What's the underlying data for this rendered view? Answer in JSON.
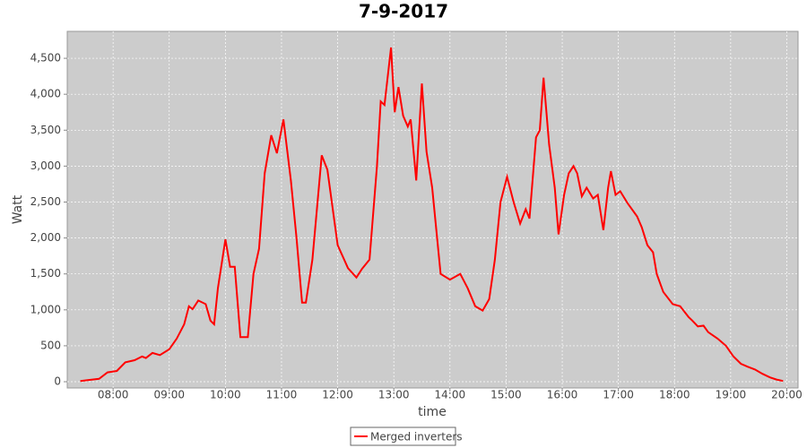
{
  "chart_data": {
    "type": "line",
    "title": "7-9-2017",
    "x_label": "time",
    "y_label": "Watt",
    "x": [
      "07:25",
      "07:35",
      "07:45",
      "07:54",
      "08:04",
      "08:13",
      "08:23",
      "08:31",
      "08:35",
      "08:42",
      "08:50",
      "09:00",
      "09:08",
      "09:16",
      "09:21",
      "09:25",
      "09:31",
      "09:39",
      "09:44",
      "09:48",
      "09:52",
      "10:00",
      "10:05",
      "10:10",
      "10:16",
      "10:24",
      "10:30",
      "10:36",
      "10:42",
      "10:49",
      "10:55",
      "11:02",
      "11:10",
      "11:16",
      "11:22",
      "11:26",
      "11:33",
      "11:43",
      "11:49",
      "12:00",
      "12:11",
      "12:20",
      "12:26",
      "12:34",
      "12:42",
      "12:46",
      "12:50",
      "12:57",
      "13:01",
      "13:05",
      "13:10",
      "13:15",
      "13:18",
      "13:24",
      "13:30",
      "13:35",
      "13:41",
      "13:50",
      "14:00",
      "14:11",
      "14:19",
      "14:27",
      "14:35",
      "14:42",
      "14:48",
      "14:54",
      "15:01",
      "15:08",
      "15:15",
      "15:21",
      "15:25",
      "15:32",
      "15:36",
      "15:40",
      "15:46",
      "15:52",
      "15:56",
      "16:02",
      "16:07",
      "16:12",
      "16:16",
      "16:21",
      "16:26",
      "16:33",
      "16:38",
      "16:44",
      "16:49",
      "16:52",
      "16:57",
      "17:02",
      "17:10",
      "17:20",
      "17:25",
      "17:31",
      "17:37",
      "17:41",
      "17:48",
      "17:58",
      "18:06",
      "18:15",
      "18:19",
      "18:25",
      "18:31",
      "18:36",
      "18:46",
      "18:55",
      "19:03",
      "19:11",
      "19:18",
      "19:26",
      "19:34",
      "19:42",
      "19:49",
      "19:56"
    ],
    "series": [
      {
        "name": "Merged inverters",
        "color": "#ff0000",
        "values": [
          10,
          25,
          40,
          130,
          150,
          270,
          300,
          350,
          330,
          400,
          370,
          450,
          600,
          800,
          1050,
          1010,
          1130,
          1080,
          850,
          800,
          1300,
          1980,
          1600,
          1600,
          620,
          620,
          1500,
          1850,
          2900,
          3430,
          3180,
          3650,
          2800,
          2000,
          1100,
          1100,
          1700,
          3150,
          2950,
          1900,
          1580,
          1450,
          1570,
          1700,
          3000,
          3900,
          3850,
          4650,
          3750,
          4100,
          3700,
          3550,
          3650,
          2800,
          4150,
          3200,
          2700,
          1500,
          1420,
          1500,
          1300,
          1050,
          990,
          1150,
          1700,
          2500,
          2850,
          2500,
          2200,
          2400,
          2270,
          3400,
          3500,
          4230,
          3300,
          2700,
          2050,
          2600,
          2900,
          3000,
          2900,
          2580,
          2700,
          2550,
          2600,
          2110,
          2700,
          2930,
          2600,
          2650,
          2480,
          2300,
          2150,
          1900,
          1800,
          1500,
          1250,
          1080,
          1050,
          900,
          850,
          770,
          780,
          690,
          600,
          500,
          350,
          250,
          210,
          170,
          110,
          60,
          30,
          10
        ]
      }
    ],
    "xlim": [
      "07:11",
      "20:12"
    ],
    "xticks": [
      "08:00",
      "09:00",
      "10:00",
      "11:00",
      "12:00",
      "13:00",
      "14:00",
      "15:00",
      "16:00",
      "17:00",
      "18:00",
      "19:00",
      "20:00"
    ],
    "ylim": [
      -87,
      4875
    ],
    "yticks": [
      0,
      500,
      {
        "value": 1000,
        "label": "1,000"
      },
      {
        "value": 1500,
        "label": "1,500"
      },
      {
        "value": 2000,
        "label": "2,000"
      },
      {
        "value": 2500,
        "label": "2,500"
      },
      {
        "value": 3000,
        "label": "3,000"
      },
      {
        "value": 3500,
        "label": "3,500"
      },
      {
        "value": 4000,
        "label": "4,000"
      },
      {
        "value": 4500,
        "label": "4,500"
      }
    ],
    "grid": true
  }
}
